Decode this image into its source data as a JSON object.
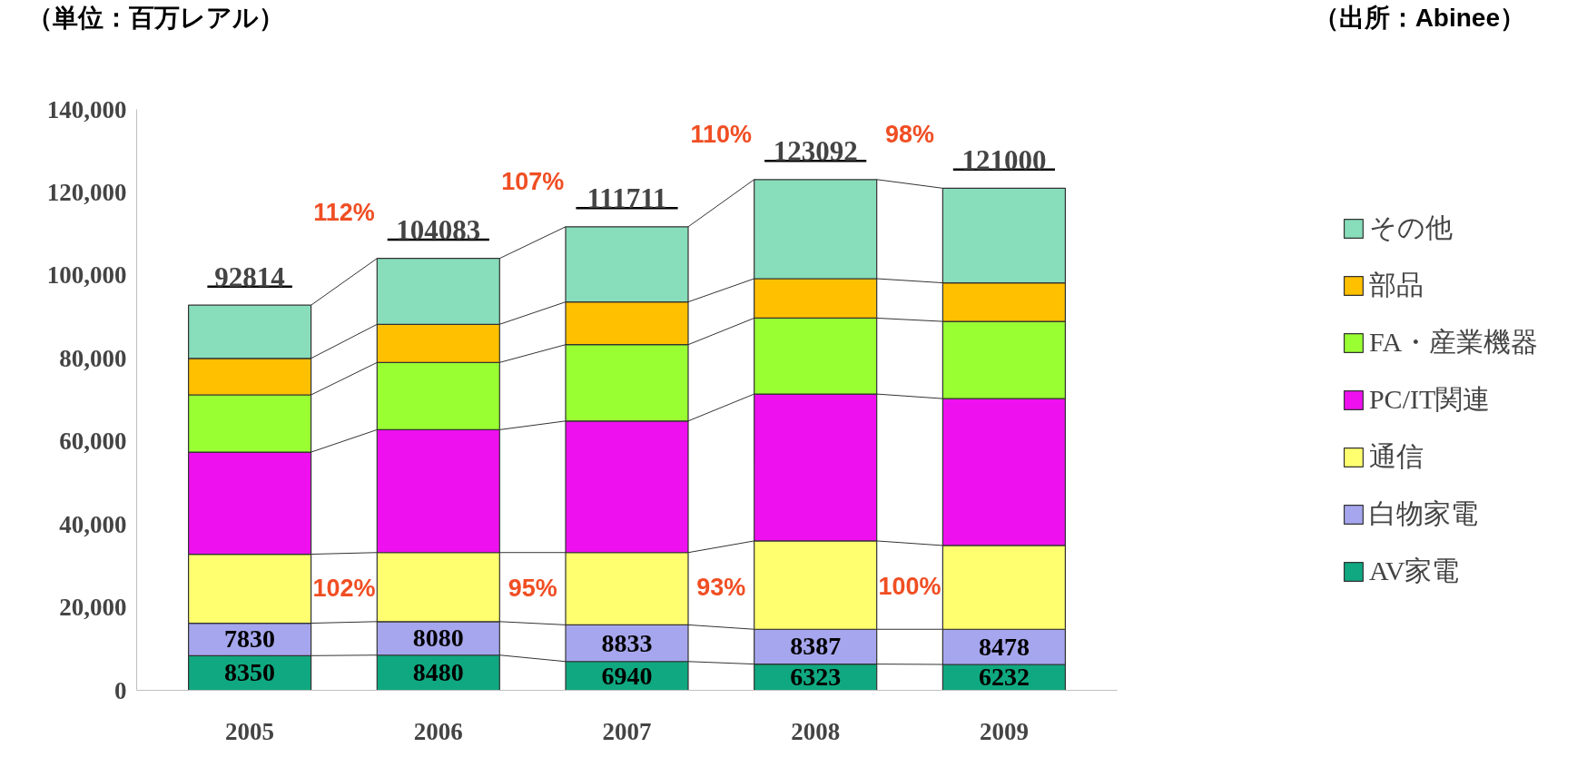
{
  "chart_data": {
    "type": "bar",
    "stacked": true,
    "ylabel": "（単位：百万レアル）",
    "categories": [
      "2005",
      "2006",
      "2007",
      "2008",
      "2009"
    ],
    "series": [
      {
        "name": "AV家電",
        "color": "#10a880",
        "values": [
          8350,
          8480,
          6940,
          6323,
          6232
        ],
        "value_labels": [
          "8350",
          "8480",
          "6940",
          "6323",
          "6232"
        ]
      },
      {
        "name": "白物家電",
        "color": "#a6a6ee",
        "values": [
          7830,
          8080,
          8833,
          8387,
          8478
        ],
        "value_labels": [
          "7830",
          "8080",
          "8833",
          "8387",
          "8478"
        ]
      },
      {
        "name": "通信",
        "color": "#ffff70",
        "values": [
          16620,
          16640,
          17427,
          21290,
          20190
        ]
      },
      {
        "name": "PC/IT関連",
        "color": "#ee10ee",
        "values": [
          24600,
          29600,
          31700,
          35400,
          35400
        ]
      },
      {
        "name": "FA・産業機器",
        "color": "#99ff33",
        "values": [
          13800,
          16200,
          18400,
          18300,
          18600
        ]
      },
      {
        "name": "部品",
        "color": "#ffc000",
        "values": [
          8800,
          9200,
          10300,
          9500,
          9300
        ]
      },
      {
        "name": "その他",
        "color": "#88ddbb",
        "values": [
          12814,
          15883,
          18111,
          23892,
          22800
        ]
      }
    ],
    "totals": [
      "92814",
      "104083",
      "111711",
      "123092",
      "121000"
    ],
    "annotations": [
      "112%",
      "107%",
      "110%",
      "98%",
      "102%",
      "95%",
      "93%",
      "100%",
      "（出所：Abinee）"
    ],
    "ylim": [
      0,
      140000
    ],
    "yticks": [
      0,
      {
        "value": 20000,
        "label": "20,000"
      },
      {
        "value": 40000,
        "label": "40,000"
      },
      {
        "value": 60000,
        "label": "60,000"
      },
      {
        "value": 80000,
        "label": "80,000"
      },
      {
        "value": 100000,
        "label": "100,000"
      },
      {
        "value": 120000,
        "label": "120,000"
      },
      {
        "value": 140000,
        "label": "140,000"
      }
    ],
    "grid": false,
    "legend": "right"
  }
}
